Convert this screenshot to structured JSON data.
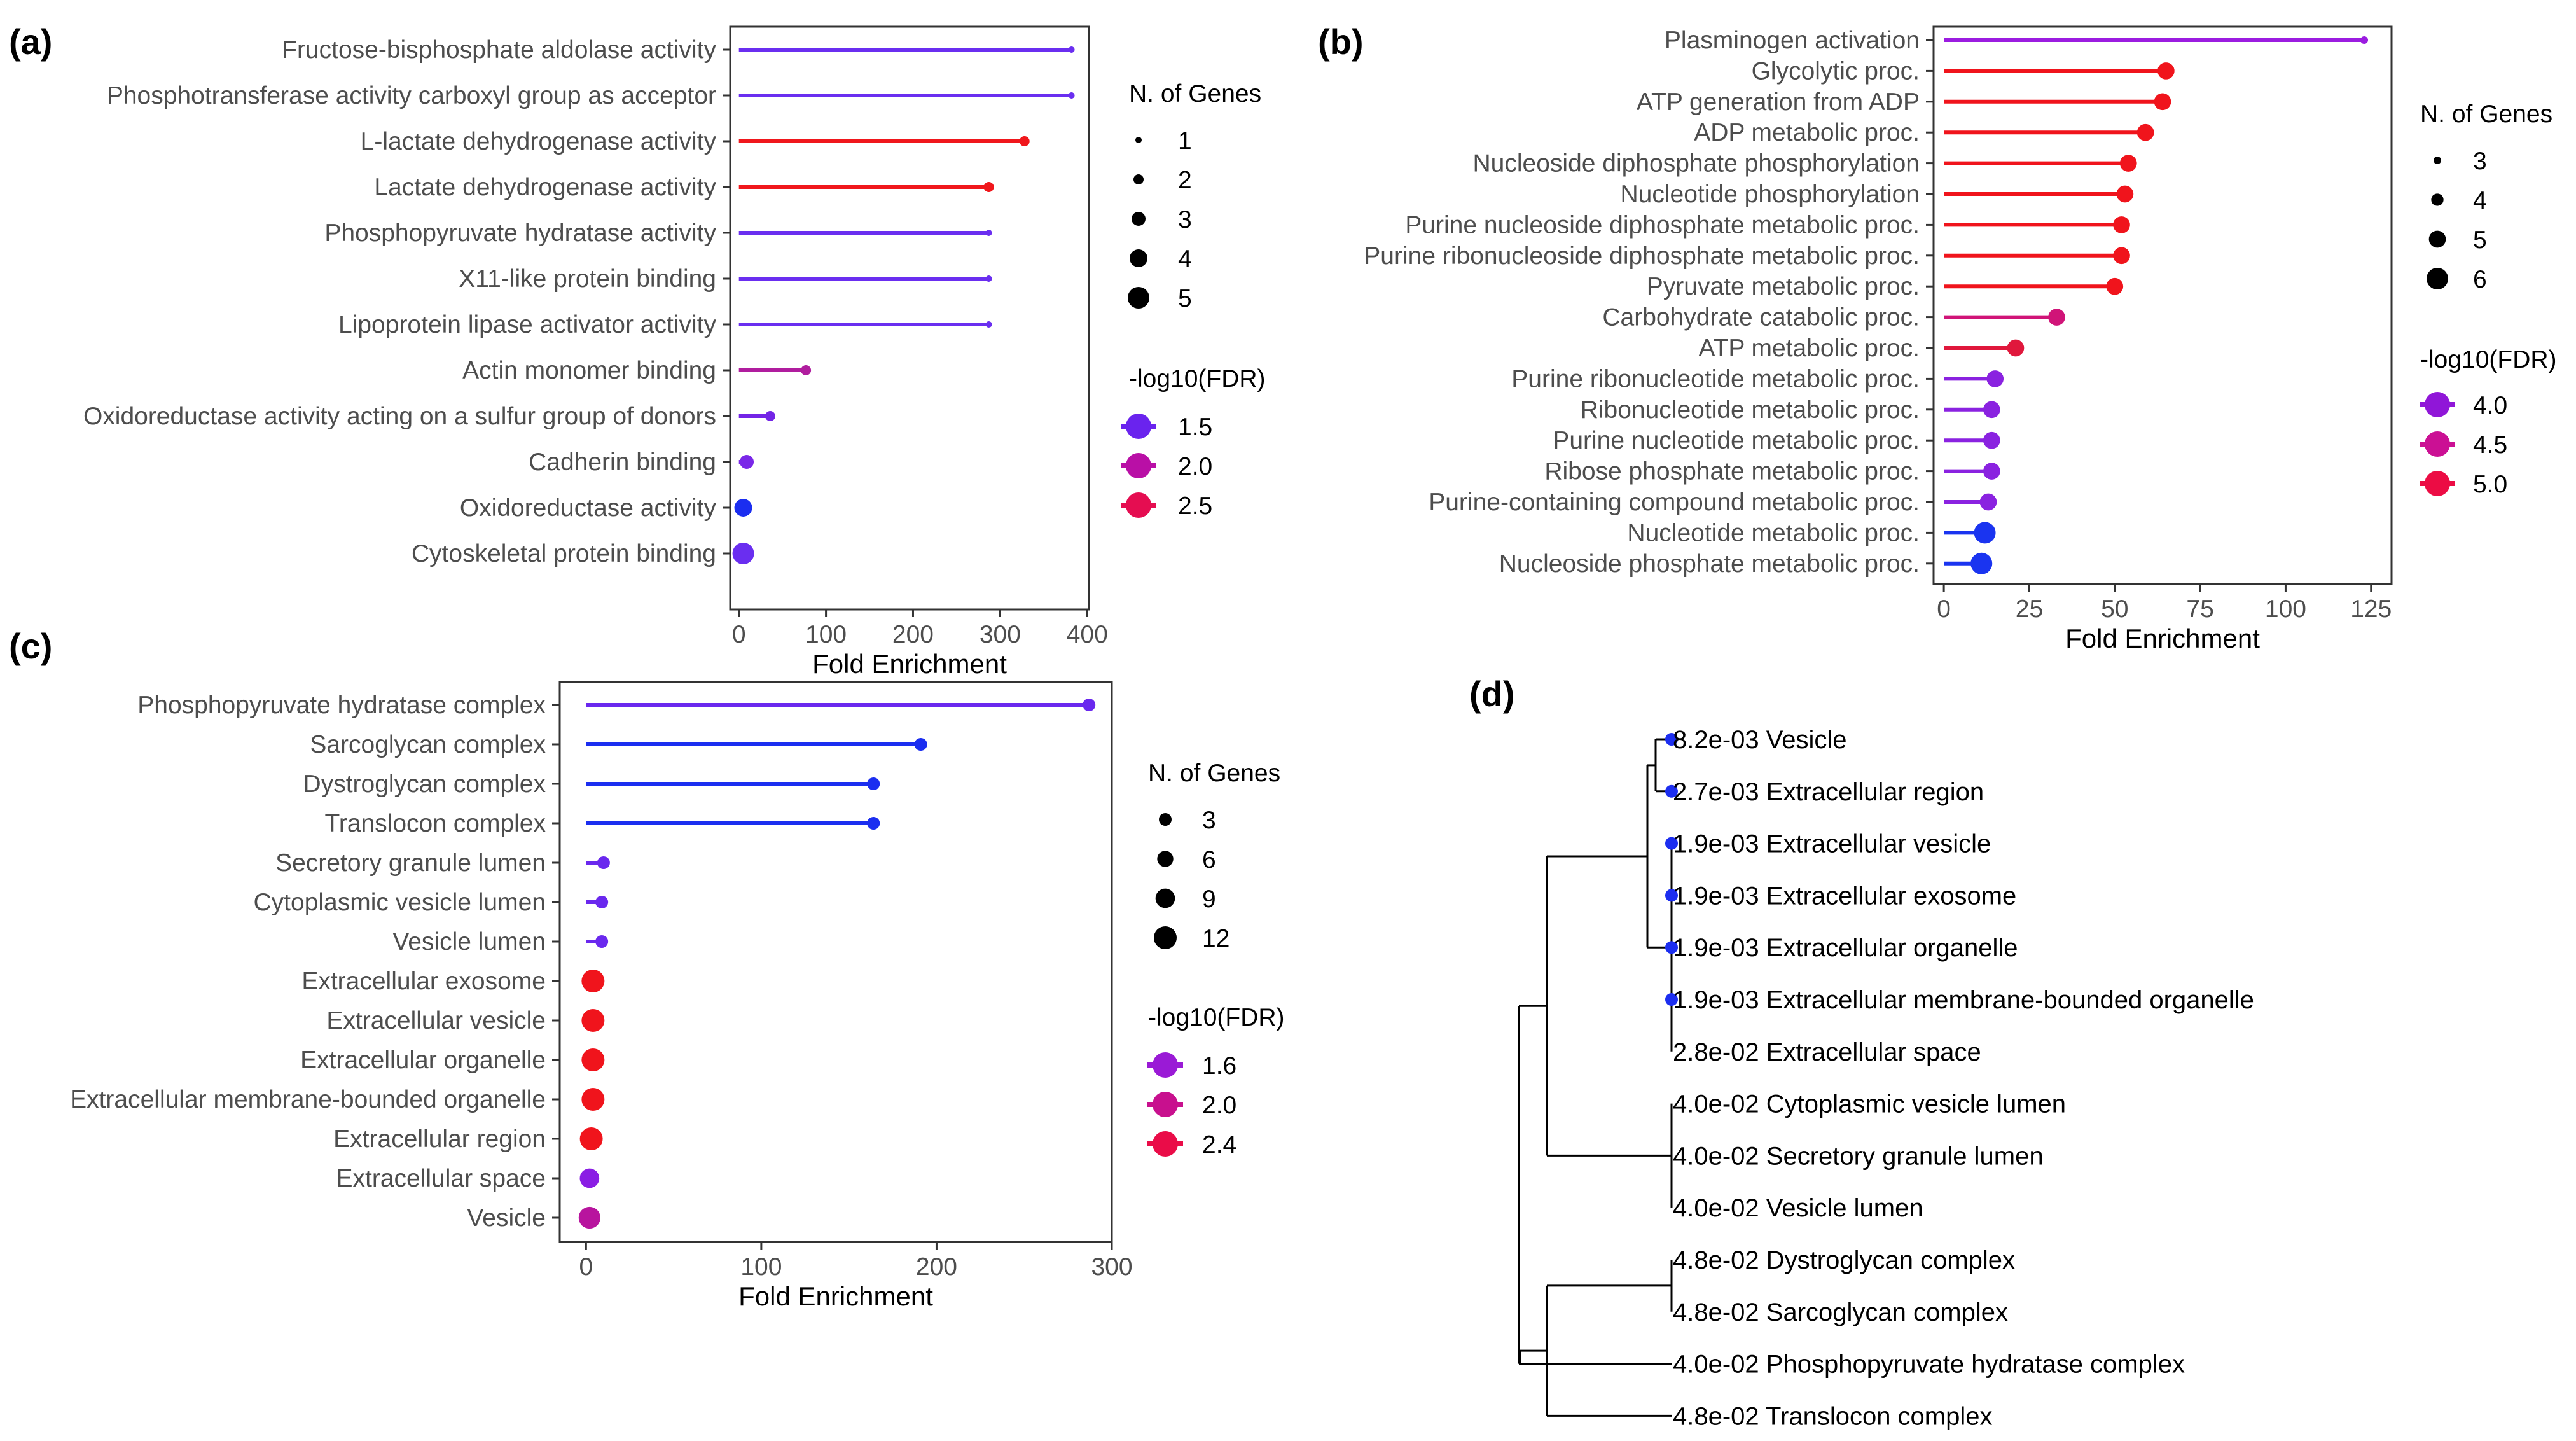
{
  "chart_data": [
    {
      "panel_label": "(a)",
      "type": "lollipop",
      "xlabel": "Fold Enrichment",
      "xlim": [
        -10,
        402
      ],
      "xticks": [
        0,
        100,
        200,
        300,
        400
      ],
      "size_legend": {
        "title": "N. of Genes",
        "values": [
          1,
          2,
          3,
          4,
          5
        ]
      },
      "color_legend": {
        "title": "-log10(FDR)",
        "values": [
          1.5,
          2.0,
          2.5
        ],
        "labels": [
          "1.5",
          "2.0",
          "2.5"
        ],
        "colors": [
          "#6a23ee",
          "#b90fa6",
          "#e50d51"
        ]
      },
      "categories": [
        "Fructose-bisphosphate aldolase activity",
        "Phosphotransferase activity carboxyl group as acceptor",
        "L-lactate dehydrogenase activity",
        "Lactate dehydrogenase activity",
        "Phosphopyruvate hydratase activity",
        "X11-like protein binding",
        "Lipoprotein lipase activator activity",
        "Actin monomer binding",
        "Oxidoreductase activity acting on a sulfur group of donors",
        "Cadherin binding",
        "Oxidoreductase activity",
        "Cytoskeletal protein binding"
      ],
      "fold_enrichment": [
        382,
        382,
        328,
        287,
        287,
        287,
        287,
        77,
        36,
        9,
        5,
        5
      ],
      "n_genes": [
        1,
        1,
        2,
        2,
        1,
        1,
        1,
        2,
        2,
        3,
        4,
        5
      ],
      "colors": [
        "#6a2ef0",
        "#6a2ef0",
        "#f0171c",
        "#f0171c",
        "#6a2ef0",
        "#6a2ef0",
        "#6a2ef0",
        "#b01d9e",
        "#7324e6",
        "#7a28e8",
        "#1b2ef0",
        "#6a2ef0"
      ]
    },
    {
      "panel_label": "(b)",
      "type": "lollipop",
      "xlabel": "Fold Enrichment",
      "xlim": [
        -3,
        131
      ],
      "xticks": [
        0,
        25,
        50,
        75,
        100,
        125
      ],
      "size_legend": {
        "title": "N. of Genes",
        "values": [
          3,
          4,
          5,
          6
        ]
      },
      "color_legend": {
        "title": "-log10(FDR)",
        "values": [
          4.0,
          4.5,
          5.0
        ],
        "labels": [
          "4.0",
          "4.5",
          "5.0"
        ],
        "colors": [
          "#9016d8",
          "#cb1094",
          "#ec0c44"
        ]
      },
      "categories": [
        "Plasminogen activation",
        "Glycolytic proc.",
        "ATP generation from ADP",
        "ADP metabolic proc.",
        "Nucleoside diphosphate phosphorylation",
        "Nucleotide phosphorylation",
        "Purine nucleoside diphosphate metabolic proc.",
        "Purine ribonucleoside diphosphate metabolic proc.",
        "Pyruvate metabolic proc.",
        "Carbohydrate catabolic proc.",
        "ATP metabolic proc.",
        "Purine ribonucleotide metabolic proc.",
        "Ribonucleotide metabolic proc.",
        "Purine nucleotide metabolic proc.",
        "Ribose phosphate metabolic proc.",
        "Purine-containing compound metabolic proc.",
        "Nucleotide metabolic proc.",
        "Nucleoside phosphate metabolic proc."
      ],
      "fold_enrichment": [
        123,
        65,
        64,
        59,
        54,
        53,
        52,
        52,
        50,
        33,
        21,
        15,
        14,
        14,
        14,
        13,
        12,
        11
      ],
      "n_genes": [
        3,
        5,
        5,
        5,
        5,
        5,
        5,
        5,
        5,
        5,
        5,
        5,
        5,
        5,
        5,
        5,
        6,
        6
      ],
      "colors": [
        "#9b1ce0",
        "#f0141c",
        "#f0141c",
        "#f0141c",
        "#f0141c",
        "#f0141c",
        "#f0141c",
        "#f0141c",
        "#f0141c",
        "#d01478",
        "#e0183c",
        "#8a22e0",
        "#8a22e0",
        "#8a22e0",
        "#8a22e0",
        "#8a22e0",
        "#1a34f0",
        "#1a34f0"
      ]
    },
    {
      "panel_label": "(c)",
      "type": "lollipop",
      "xlabel": "Fold Enrichment",
      "xlim": [
        -15,
        300
      ],
      "xticks": [
        0,
        100,
        200,
        300
      ],
      "size_legend": {
        "title": "N. of Genes",
        "values": [
          3,
          6,
          9,
          12
        ]
      },
      "color_legend": {
        "title": "-log10(FDR)",
        "values": [
          1.6,
          2.0,
          2.4
        ],
        "labels": [
          "1.6",
          "2.0",
          "2.4"
        ],
        "colors": [
          "#9a1ad6",
          "#c8108e",
          "#ea0c48"
        ]
      },
      "categories": [
        "Phosphopyruvate hydratase complex",
        "Sarcoglycan complex",
        "Dystroglycan complex",
        "Translocon complex",
        "Secretory granule lumen",
        "Cytoplasmic vesicle lumen",
        "Vesicle lumen",
        "Extracellular exosome",
        "Extracellular vesicle",
        "Extracellular organelle",
        "Extracellular membrane-bounded organelle",
        "Extracellular region",
        "Extracellular space",
        "Vesicle"
      ],
      "fold_enrichment": [
        287,
        191,
        164,
        164,
        10,
        9,
        9,
        4,
        4,
        4,
        4,
        3,
        2,
        2
      ],
      "n_genes": [
        2,
        2,
        2,
        2,
        3,
        3,
        3,
        12,
        12,
        12,
        12,
        13,
        9,
        11
      ],
      "colors": [
        "#6a28ee",
        "#1b2ef0",
        "#1b2ef0",
        "#1b2ef0",
        "#6a28ee",
        "#6a28ee",
        "#6a28ee",
        "#f0141c",
        "#f0141c",
        "#f0141c",
        "#f0141c",
        "#f0141c",
        "#8a1ee4",
        "#b8149e"
      ]
    },
    {
      "panel_label": "(d)",
      "type": "dendrogram",
      "leaves": [
        {
          "fdr": "8.2e-03",
          "term": "Vesicle",
          "dot": true,
          "color": "#1c2ef0"
        },
        {
          "fdr": "2.7e-03",
          "term": "Extracellular region",
          "dot": true,
          "color": "#1c2ef0"
        },
        {
          "fdr": "1.9e-03",
          "term": "Extracellular vesicle",
          "dot": true,
          "color": "#1c2ef0"
        },
        {
          "fdr": "1.9e-03",
          "term": "Extracellular exosome",
          "dot": true,
          "color": "#1c2ef0"
        },
        {
          "fdr": "1.9e-03",
          "term": "Extracellular organelle",
          "dot": true,
          "color": "#1c2ef0"
        },
        {
          "fdr": "1.9e-03",
          "term": "Extracellular membrane-bounded organelle",
          "dot": true,
          "color": "#1c2ef0"
        },
        {
          "fdr": "2.8e-02",
          "term": "Extracellular space",
          "dot": false,
          "color": "#1c2ef0"
        },
        {
          "fdr": "4.0e-02",
          "term": "Cytoplasmic vesicle lumen",
          "dot": false,
          "color": "#1c2ef0"
        },
        {
          "fdr": "4.0e-02",
          "term": "Secretory granule lumen",
          "dot": false,
          "color": "#1c2ef0"
        },
        {
          "fdr": "4.0e-02",
          "term": "Vesicle lumen",
          "dot": false,
          "color": "#1c2ef0"
        },
        {
          "fdr": "4.8e-02",
          "term": "Dystroglycan complex",
          "dot": false,
          "color": "#1c2ef0"
        },
        {
          "fdr": "4.8e-02",
          "term": "Sarcoglycan complex",
          "dot": false,
          "color": "#1c2ef0"
        },
        {
          "fdr": "4.0e-02",
          "term": "Phosphopyruvate hydratase complex",
          "dot": false,
          "color": "#1c2ef0"
        },
        {
          "fdr": "4.8e-02",
          "term": "Translocon complex",
          "dot": false,
          "color": "#1c2ef0"
        }
      ]
    }
  ]
}
